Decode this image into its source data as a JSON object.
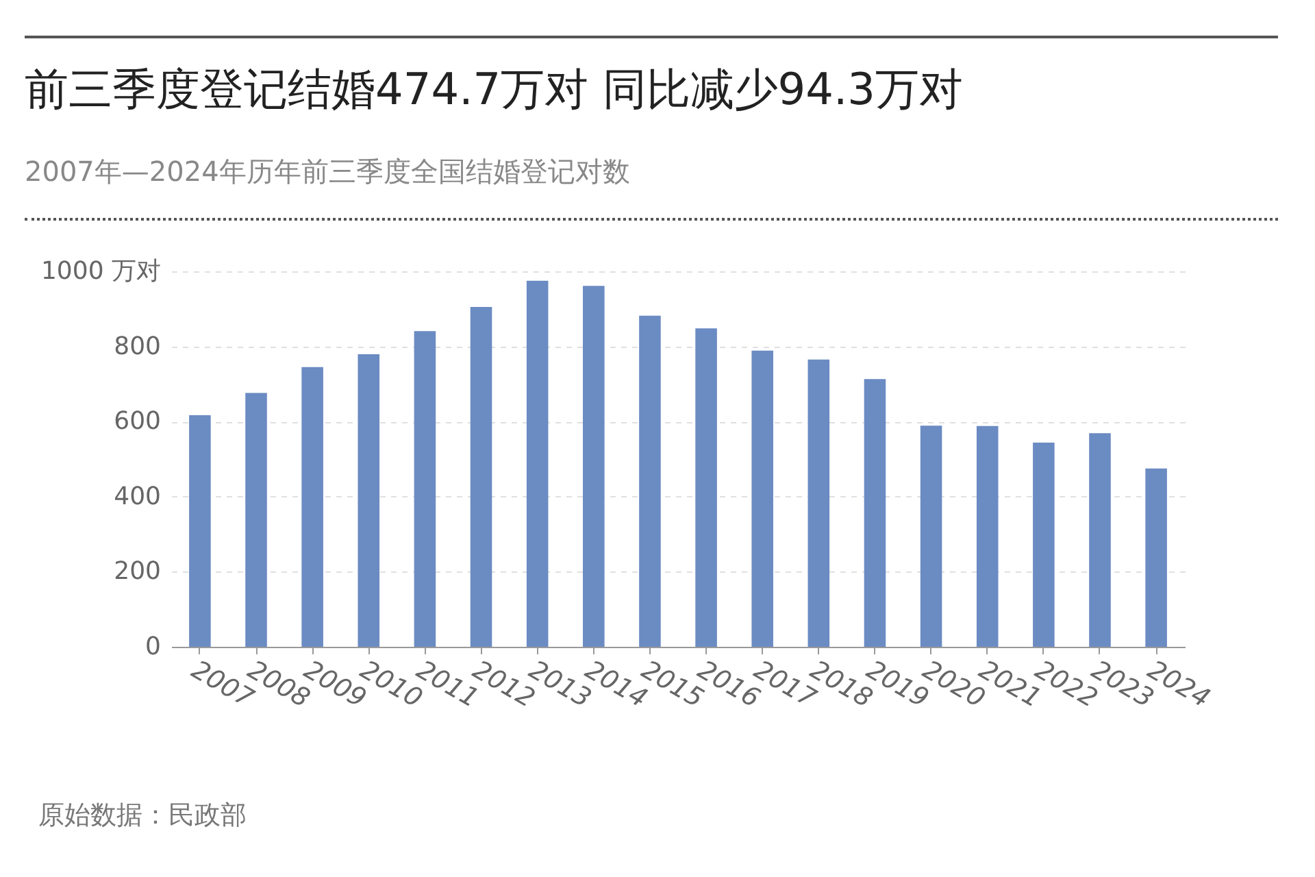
{
  "chart_data": {
    "type": "bar",
    "title": "前三季度登记结婚474.7万对 同比减少94.3万对",
    "subtitle": "2007年—2024年历年前三季度全国结婚登记对数",
    "categories": [
      "2007",
      "2008",
      "2009",
      "2010",
      "2011",
      "2012",
      "2013",
      "2014",
      "2015",
      "2016",
      "2017",
      "2018",
      "2019",
      "2020",
      "2021",
      "2022",
      "2023",
      "2024"
    ],
    "values": [
      617,
      676,
      745,
      779,
      841,
      905,
      975,
      961,
      882,
      848,
      789,
      765,
      713,
      589,
      588,
      544,
      569,
      474.7
    ],
    "color": "#6b8bc3",
    "ylim": [
      0,
      1000
    ],
    "yticks": [
      0,
      200,
      400,
      600,
      800,
      {
        "value": 1000,
        "label": "1000 万对"
      }
    ],
    "grid": "y",
    "annotations": [
      "原始数据：民政部"
    ]
  }
}
